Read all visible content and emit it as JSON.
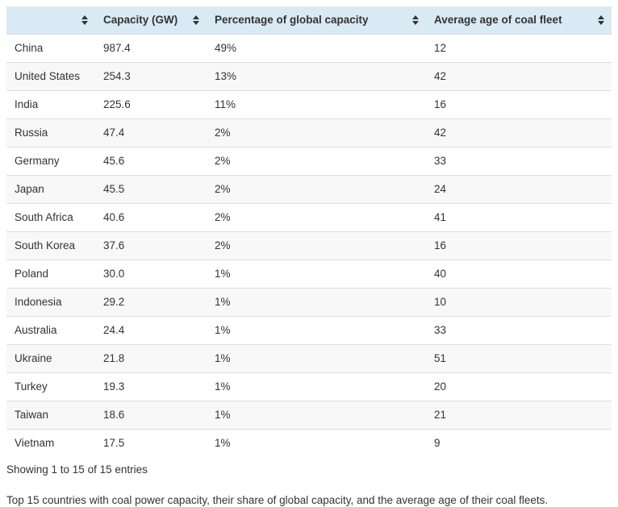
{
  "table": {
    "columns": [
      {
        "label": "",
        "sortable": true
      },
      {
        "label": "Capacity (GW)",
        "sortable": true
      },
      {
        "label": "Percentage of global capacity",
        "sortable": true
      },
      {
        "label": "Average age of coal fleet",
        "sortable": true
      }
    ],
    "rows": [
      [
        "China",
        "987.4",
        "49%",
        "12"
      ],
      [
        "United States",
        "254.3",
        "13%",
        "42"
      ],
      [
        "India",
        "225.6",
        "11%",
        "16"
      ],
      [
        "Russia",
        "47.4",
        "2%",
        "42"
      ],
      [
        "Germany",
        "45.6",
        "2%",
        "33"
      ],
      [
        "Japan",
        "45.5",
        "2%",
        "24"
      ],
      [
        "South Africa",
        "40.6",
        "2%",
        "41"
      ],
      [
        "South Korea",
        "37.6",
        "2%",
        "16"
      ],
      [
        "Poland",
        "30.0",
        "1%",
        "40"
      ],
      [
        "Indonesia",
        "29.2",
        "1%",
        "10"
      ],
      [
        "Australia",
        "24.4",
        "1%",
        "33"
      ],
      [
        "Ukraine",
        "21.8",
        "1%",
        "51"
      ],
      [
        "Turkey",
        "19.3",
        "1%",
        "20"
      ],
      [
        "Taiwan",
        "18.6",
        "1%",
        "21"
      ],
      [
        "Vietnam",
        "17.5",
        "1%",
        "9"
      ]
    ]
  },
  "footer": {
    "showing_text": "Showing 1 to 15 of 15 entries"
  },
  "caption": "Top 15 countries with coal power capacity, their share of global capacity, and the average age of their coal fleets.",
  "icons": {
    "sort": "sort-both-icon"
  },
  "colors": {
    "header_bg": "#d9eaf4",
    "stripe_bg": "#f8f8f8",
    "row_border": "#dddddd",
    "text": "#333333"
  }
}
